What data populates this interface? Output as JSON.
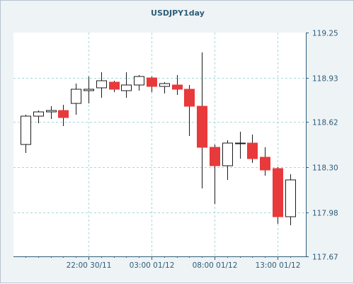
{
  "chart_data": {
    "type": "candlestick",
    "title": "USDJPY1day",
    "colors": {
      "up_fill": "#ffffff",
      "down_fill": "#e8393b",
      "candle_border": "#1a1a1a",
      "plot_background": "#ffffff",
      "outer_background": "#eef3f6",
      "axis_text": "#2e5d78",
      "grid": "#a8d8d8"
    },
    "grid": true,
    "y_ticks": [
      "119.25",
      "118.93",
      "118.62",
      "118.30",
      "117.98",
      "117.67"
    ],
    "ylim": [
      117.67,
      119.25
    ],
    "x_ticks": [
      {
        "label": "22:00 30/11",
        "index": 5
      },
      {
        "label": "03:00 01/12",
        "index": 10
      },
      {
        "label": "08:00 01/12",
        "index": 15
      },
      {
        "label": "13:00 01/12",
        "index": 20
      }
    ],
    "candles": [
      {
        "open": 118.46,
        "high": 118.67,
        "low": 118.4,
        "close": 118.66
      },
      {
        "open": 118.66,
        "high": 118.7,
        "low": 118.61,
        "close": 118.69
      },
      {
        "open": 118.69,
        "high": 118.73,
        "low": 118.64,
        "close": 118.7
      },
      {
        "open": 118.7,
        "high": 118.74,
        "low": 118.59,
        "close": 118.65
      },
      {
        "open": 118.75,
        "high": 118.89,
        "low": 118.67,
        "close": 118.85
      },
      {
        "open": 118.84,
        "high": 118.94,
        "low": 118.75,
        "close": 118.85
      },
      {
        "open": 118.86,
        "high": 118.97,
        "low": 118.79,
        "close": 118.91
      },
      {
        "open": 118.9,
        "high": 118.91,
        "low": 118.83,
        "close": 118.85
      },
      {
        "open": 118.84,
        "high": 118.97,
        "low": 118.79,
        "close": 118.88
      },
      {
        "open": 118.88,
        "high": 118.95,
        "low": 118.84,
        "close": 118.94
      },
      {
        "open": 118.93,
        "high": 118.94,
        "low": 118.83,
        "close": 118.87
      },
      {
        "open": 118.87,
        "high": 118.9,
        "low": 118.82,
        "close": 118.89
      },
      {
        "open": 118.88,
        "high": 118.95,
        "low": 118.81,
        "close": 118.85
      },
      {
        "open": 118.85,
        "high": 118.88,
        "low": 118.52,
        "close": 118.73
      },
      {
        "open": 118.73,
        "high": 119.11,
        "low": 118.15,
        "close": 118.44
      },
      {
        "open": 118.44,
        "high": 118.46,
        "low": 118.04,
        "close": 118.31
      },
      {
        "open": 118.31,
        "high": 118.49,
        "low": 118.21,
        "close": 118.47
      },
      {
        "open": 118.47,
        "high": 118.55,
        "low": 118.36,
        "close": 118.47
      },
      {
        "open": 118.47,
        "high": 118.53,
        "low": 118.33,
        "close": 118.36
      },
      {
        "open": 118.37,
        "high": 118.44,
        "low": 118.24,
        "close": 118.28
      },
      {
        "open": 118.29,
        "high": 118.3,
        "low": 117.9,
        "close": 117.95
      },
      {
        "open": 117.95,
        "high": 118.25,
        "low": 117.89,
        "close": 118.21
      }
    ]
  }
}
